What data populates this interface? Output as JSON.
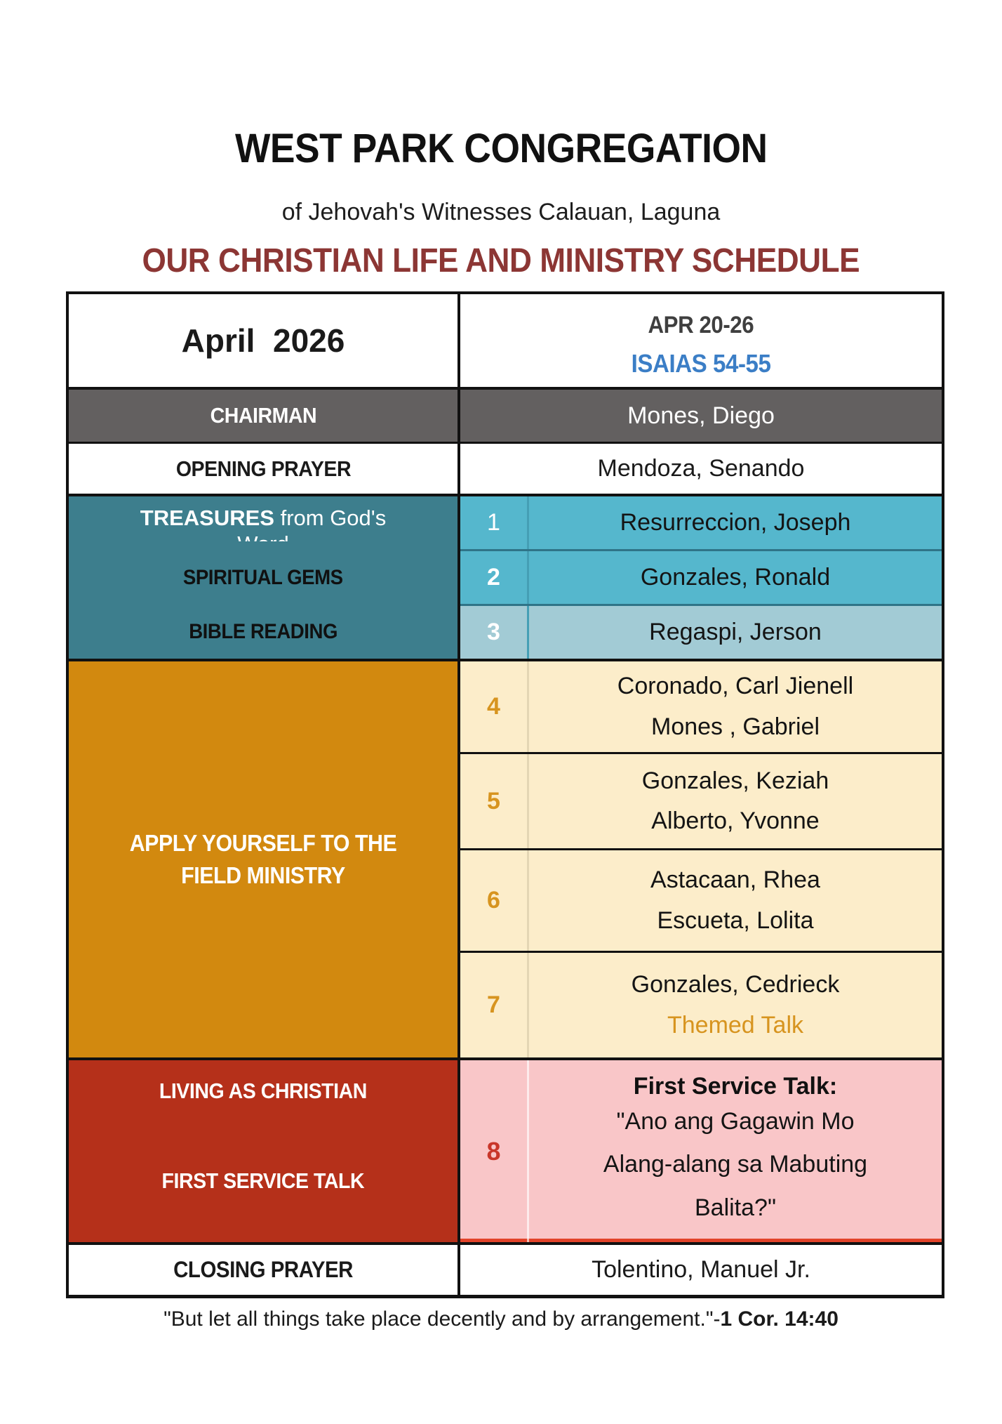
{
  "header": {
    "title": "WEST PARK CONGREGATION",
    "subtitle": "of Jehovah's Witnesses Calauan, Laguna",
    "schedule_title": "OUR CHRISTIAN LIFE AND MINISTRY SCHEDULE"
  },
  "week": {
    "month_label": "April  2026",
    "date_range": "APR 20-26",
    "bible_reading": "ISAIAS 54-55"
  },
  "chairman": {
    "label": "CHAIRMAN",
    "name": "Mones, Diego"
  },
  "opening_prayer": {
    "label": "OPENING PRAYER",
    "name": "Mendoza, Senando"
  },
  "treasures": {
    "section_title_bold": "TREASURES",
    "section_title_rest": " from God's",
    "section_title_clipped": "Word",
    "row_labels": [
      "SPIRITUAL GEMS",
      "BIBLE READING"
    ],
    "rows": [
      {
        "num": "1",
        "name": "Resurreccion, Joseph"
      },
      {
        "num": "2",
        "name": "Gonzales, Ronald"
      },
      {
        "num": "3",
        "name": "Regaspi, Jerson"
      }
    ]
  },
  "field_ministry": {
    "section_title": "APPLY YOURSELF TO THE FIELD MINISTRY",
    "rows": [
      {
        "num": "4",
        "line1": "Coronado, Carl Jienell",
        "line2": "Mones , Gabriel"
      },
      {
        "num": "5",
        "line1": "Gonzales, Keziah",
        "line2": "Alberto, Yvonne"
      },
      {
        "num": "6",
        "line1": "Astacaan, Rhea",
        "line2": "Escueta, Lolita"
      },
      {
        "num": "7",
        "line1": "Gonzales, Cedrieck",
        "line2": "Themed Talk"
      }
    ]
  },
  "living": {
    "section_title_1": "LIVING AS CHRISTIAN",
    "section_title_2": "FIRST SERVICE TALK",
    "row": {
      "num": "8",
      "title": "First Service Talk:",
      "talk": "\"Ano ang Gagawin Mo Alang-alang sa Mabuting Balita?\""
    }
  },
  "closing_prayer": {
    "label": "CLOSING PRAYER",
    "name": "Tolentino, Manuel Jr."
  },
  "footer": {
    "quote": "\"But let all things take place decently and by arrangement.\"-",
    "reference": "1 Cor. 14:40"
  },
  "colors": {
    "maroon": "#8c3634",
    "blue": "#3b7ec6",
    "dark_gray_text": "#3f3f3f",
    "gray_row": "#636060",
    "teal_dark": "#3d7e8d",
    "teal_row": "#55b7cd",
    "teal_row_light": "#a2cbd5",
    "orange": "#d2890f",
    "orange_text": "#d7941f",
    "cream": "#fcedca",
    "red": "#b5301a",
    "pink": "#f9c6c8",
    "red_line": "#e2432a",
    "number_red": "#c9362a",
    "border": "#111111"
  }
}
